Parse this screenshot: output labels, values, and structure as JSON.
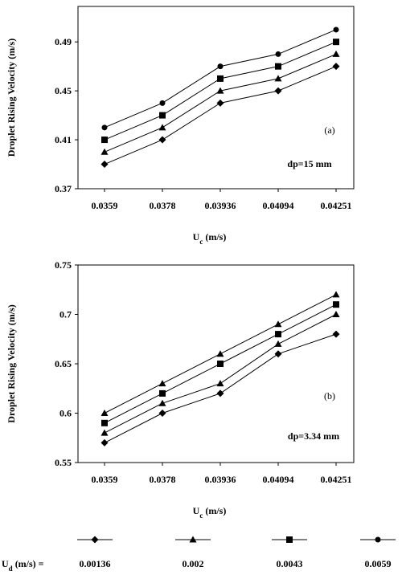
{
  "chart_data": [
    {
      "type": "line",
      "categories": [
        "0.0359",
        "0.0378",
        "0.03936",
        "0.04094",
        "0.04251"
      ],
      "y_label": "Droplet Rising Velocity (m/s)",
      "x_label": [
        "U",
        "c",
        " (m/s)"
      ],
      "annotations": [
        "(a)",
        "dp=15 mm"
      ],
      "ylim": [
        0.37,
        0.519
      ],
      "yticks": [
        0.37,
        0.41,
        0.45,
        0.49
      ],
      "color": "#000000",
      "series": [
        {
          "marker": "diamond",
          "values": [
            0.39,
            0.41,
            0.44,
            0.45,
            0.47
          ]
        },
        {
          "marker": "triangle",
          "values": [
            0.4,
            0.42,
            0.45,
            0.46,
            0.48
          ]
        },
        {
          "marker": "square",
          "values": [
            0.41,
            0.43,
            0.46,
            0.47,
            0.49
          ]
        },
        {
          "marker": "circle",
          "values": [
            0.42,
            0.44,
            0.47,
            0.48,
            0.5
          ]
        }
      ]
    },
    {
      "type": "line",
      "categories": [
        "0.0359",
        "0.0378",
        "0.03936",
        "0.04094",
        "0.04251"
      ],
      "y_label": "Droplet Rising Velocity (m/s)",
      "x_label": [
        "U",
        "c",
        " (m/s)"
      ],
      "annotations": [
        "(b)",
        "dp=3.34 mm"
      ],
      "ylim": [
        0.55,
        0.75
      ],
      "yticks": [
        0.55,
        0.6,
        0.65,
        0.7,
        0.75
      ],
      "color": "#000000",
      "series": [
        {
          "marker": "diamond",
          "values": [
            0.57,
            0.6,
            0.62,
            0.66,
            0.68
          ]
        },
        {
          "marker": "triangle",
          "values": [
            0.58,
            0.61,
            0.63,
            0.67,
            0.7
          ]
        },
        {
          "marker": "square",
          "values": [
            0.59,
            0.62,
            0.65,
            0.68,
            0.71
          ]
        },
        {
          "marker": "triangle",
          "values": [
            0.6,
            0.63,
            0.66,
            0.69,
            0.72
          ]
        }
      ]
    }
  ],
  "legend": {
    "label": [
      "U",
      "d",
      " (m/s) ="
    ],
    "entries": [
      {
        "name": "0.00136",
        "marker": "diamond"
      },
      {
        "name": "0.002",
        "marker": "triangle"
      },
      {
        "name": "0.0043",
        "marker": "square"
      },
      {
        "name": "0.0059",
        "marker": "circle"
      }
    ]
  }
}
